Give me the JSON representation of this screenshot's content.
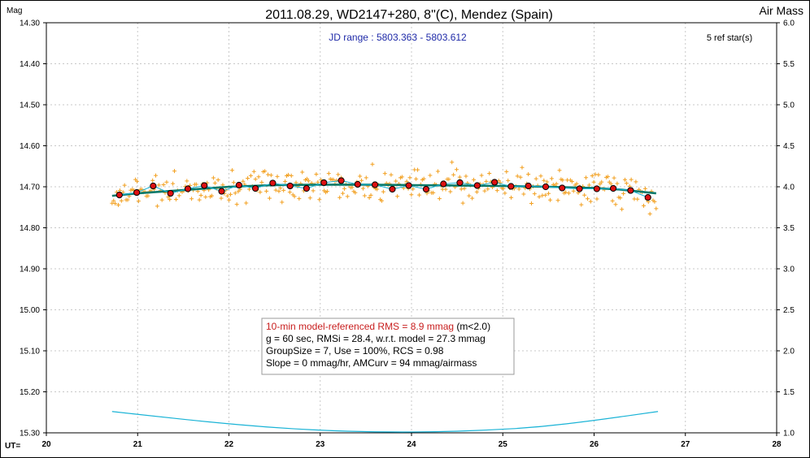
{
  "chart_data": {
    "type": "scatter",
    "title": "2011.08.29, WD2147+280, 8\"(C), Mendez (Spain)",
    "ylabel": "Mag",
    "y2label": "Air Mass",
    "xlabel": "UT=",
    "jd_range": "JD range : 5803.363 - 5803.612",
    "ref_stars": "5 ref star(s)",
    "xlim": [
      20,
      28
    ],
    "ylim": [
      15.3,
      14.3
    ],
    "y2lim": [
      1.0,
      6.0
    ],
    "x_ticks": [
      "20",
      "21",
      "22",
      "23",
      "24",
      "25",
      "26",
      "27",
      "28"
    ],
    "y_ticks": [
      "14.30",
      "14.40",
      "14.50",
      "14.60",
      "14.70",
      "14.80",
      "14.90",
      "15.00",
      "15.10",
      "15.20",
      "15.30"
    ],
    "y2_ticks": [
      "6.0",
      "5.5",
      "5.0",
      "4.5",
      "4.0",
      "3.5",
      "3.0",
      "2.5",
      "2.0",
      "1.5",
      "1.0"
    ],
    "grid": true,
    "info_box": {
      "line1_red": "10-min model-referenced RMS = 8.9 mmag",
      "line1_black": " (m<2.0)",
      "line2": "g = 60 sec, RMSi = 28.4, w.r.t. model = 27.3 mmag",
      "line3": "GroupSize = 7, Use = 100%, RCS = 0.98",
      "line4": "Slope = 0 mmag/hr, AMCurv = 94 mmag/airmass"
    },
    "series": [
      {
        "name": "",
        "kind": "group-averages",
        "x": [
          20.8,
          20.99,
          21.17,
          21.36,
          21.55,
          21.73,
          21.92,
          22.11,
          22.29,
          22.48,
          22.67,
          22.85,
          23.04,
          23.23,
          23.41,
          23.6,
          23.79,
          23.97,
          24.16,
          24.35,
          24.53,
          24.72,
          24.91,
          25.09,
          25.28,
          25.47,
          25.65,
          25.84,
          26.03,
          26.21,
          26.4,
          26.59
        ],
        "values": [
          14.72,
          14.714,
          14.698,
          14.716,
          14.705,
          14.697,
          14.711,
          14.696,
          14.704,
          14.691,
          14.698,
          14.704,
          14.69,
          14.685,
          14.694,
          14.695,
          14.706,
          14.697,
          14.706,
          14.693,
          14.69,
          14.697,
          14.689,
          14.699,
          14.698,
          14.7,
          14.703,
          14.705,
          14.705,
          14.704,
          14.709,
          14.726
        ]
      },
      {
        "name": "",
        "kind": "trend",
        "x": [
          20.72,
          21.0,
          21.5,
          22.0,
          22.5,
          23.0,
          23.5,
          24.0,
          24.5,
          25.0,
          25.5,
          26.0,
          26.3,
          26.68
        ],
        "values": [
          14.722,
          14.716,
          14.708,
          14.7,
          14.696,
          14.695,
          14.695,
          14.696,
          14.697,
          14.698,
          14.7,
          14.703,
          14.707,
          14.716
        ]
      },
      {
        "name": "",
        "kind": "airmass",
        "axis": "y2",
        "x": [
          20.72,
          21.2,
          21.8,
          22.4,
          23.0,
          23.6,
          24.2,
          24.8,
          25.4,
          26.0,
          26.7
        ],
        "values": [
          1.26,
          1.2,
          1.13,
          1.07,
          1.03,
          1.01,
          1.01,
          1.03,
          1.07,
          1.15,
          1.26
        ]
      }
    ]
  },
  "colors": {
    "individual": "#f2a020",
    "group_fill": "#dd1111",
    "trend": "#0a7a6a",
    "airmass": "#19b3d6",
    "rms_text": "#c81e1e",
    "grid": "#c8c8c8"
  }
}
